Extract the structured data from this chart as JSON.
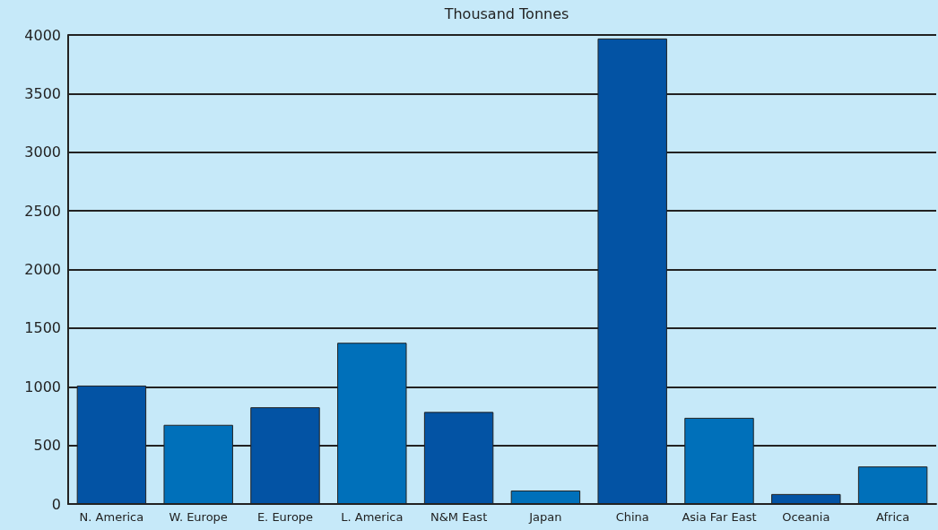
{
  "chart_data": {
    "type": "bar",
    "title": "Thousand Tonnes",
    "categories": [
      "N. America",
      "W. Europe",
      "E. Europe",
      "L. America",
      "N&M East",
      "Japan",
      "China",
      "Asia Far East",
      "Oceania",
      "Africa"
    ],
    "values": [
      1010,
      675,
      825,
      1375,
      785,
      115,
      3970,
      735,
      85,
      320
    ],
    "colors": [
      "#0353a4",
      "#0070ba",
      "#0353a4",
      "#0070ba",
      "#0353a4",
      "#0070ba",
      "#0353a4",
      "#0070ba",
      "#0353a4",
      "#0070ba"
    ],
    "ylim": [
      0,
      4000
    ],
    "yticks": [
      0,
      500,
      1000,
      1500,
      2000,
      2500,
      3000,
      3500,
      4000
    ],
    "grid": "y"
  }
}
